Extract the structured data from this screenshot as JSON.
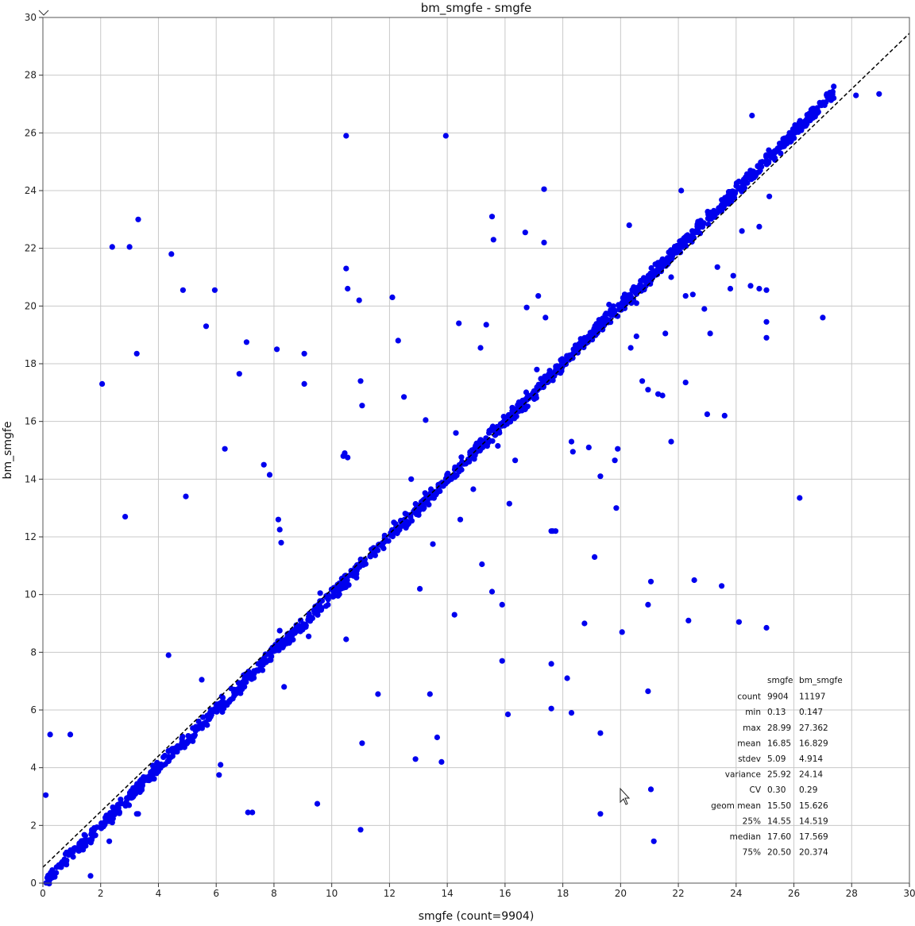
{
  "chart_data": {
    "type": "scatter",
    "title": "bm_smgfe - smgfe",
    "xlabel": "smgfe (count=9904)",
    "ylabel": "bm_smgfe",
    "xlim": [
      0,
      30
    ],
    "ylim": [
      0,
      30
    ],
    "xticks": [
      0,
      2,
      4,
      6,
      8,
      10,
      12,
      14,
      16,
      18,
      20,
      22,
      24,
      26,
      28,
      30
    ],
    "yticks": [
      0,
      2,
      4,
      6,
      8,
      10,
      12,
      14,
      16,
      18,
      20,
      22,
      24,
      26,
      28,
      30
    ],
    "grid": true,
    "point_color": "#0000ee",
    "fit_line": {
      "style": "dashed",
      "color": "#000000",
      "x": [
        0,
        30
      ],
      "y": [
        0.55,
        29.45
      ]
    },
    "series": [
      {
        "diagonal_band": {
          "x_range": [
            0.1,
            27.4
          ],
          "spread": 0.2
        },
        "points": [
          [
            0.1,
            3.05
          ],
          [
            0.25,
            5.15
          ],
          [
            0.95,
            5.15
          ],
          [
            2.05,
            17.3
          ],
          [
            2.4,
            22.05
          ],
          [
            3.0,
            22.05
          ],
          [
            3.3,
            23.0
          ],
          [
            3.25,
            18.35
          ],
          [
            2.85,
            12.7
          ],
          [
            4.45,
            21.8
          ],
          [
            4.85,
            20.55
          ],
          [
            4.95,
            13.4
          ],
          [
            5.65,
            19.3
          ],
          [
            5.95,
            20.55
          ],
          [
            6.3,
            15.05
          ],
          [
            6.8,
            17.65
          ],
          [
            7.05,
            18.75
          ],
          [
            7.65,
            14.5
          ],
          [
            7.85,
            14.15
          ],
          [
            8.1,
            18.5
          ],
          [
            8.15,
            12.6
          ],
          [
            8.2,
            12.25
          ],
          [
            8.25,
            11.8
          ],
          [
            9.05,
            18.35
          ],
          [
            9.05,
            17.3
          ],
          [
            9.5,
            2.75
          ],
          [
            10.4,
            14.8
          ],
          [
            10.55,
            14.75
          ],
          [
            10.45,
            14.9
          ],
          [
            10.5,
            21.3
          ],
          [
            11.0,
            1.85
          ],
          [
            11.05,
            4.85
          ],
          [
            10.5,
            25.9
          ],
          [
            10.55,
            20.6
          ],
          [
            10.95,
            20.2
          ],
          [
            11.0,
            17.4
          ],
          [
            11.05,
            16.55
          ],
          [
            12.1,
            20.3
          ],
          [
            12.3,
            18.8
          ],
          [
            12.5,
            16.85
          ],
          [
            12.9,
            4.3
          ],
          [
            13.4,
            6.55
          ],
          [
            13.65,
            5.05
          ],
          [
            13.8,
            4.2
          ],
          [
            13.95,
            25.9
          ],
          [
            14.25,
            9.3
          ],
          [
            14.4,
            19.4
          ],
          [
            15.55,
            23.1
          ],
          [
            15.6,
            22.3
          ],
          [
            15.2,
            11.05
          ],
          [
            15.55,
            10.1
          ],
          [
            15.9,
            9.65
          ],
          [
            15.9,
            7.7
          ],
          [
            16.1,
            5.85
          ],
          [
            16.15,
            13.15
          ],
          [
            16.7,
            22.55
          ],
          [
            17.15,
            20.35
          ],
          [
            17.35,
            24.05
          ],
          [
            17.35,
            22.2
          ],
          [
            17.6,
            12.2
          ],
          [
            17.65,
            12.2
          ],
          [
            17.75,
            12.2
          ],
          [
            17.6,
            7.6
          ],
          [
            17.6,
            6.05
          ],
          [
            18.15,
            7.1
          ],
          [
            18.3,
            5.9
          ],
          [
            18.75,
            9.0
          ],
          [
            19.1,
            11.3
          ],
          [
            19.3,
            5.2
          ],
          [
            19.3,
            2.4
          ],
          [
            19.8,
            14.65
          ],
          [
            19.85,
            13.0
          ],
          [
            20.05,
            8.7
          ],
          [
            20.3,
            22.8
          ],
          [
            20.35,
            18.55
          ],
          [
            20.75,
            17.4
          ],
          [
            20.95,
            9.65
          ],
          [
            20.95,
            6.65
          ],
          [
            21.05,
            3.25
          ],
          [
            21.05,
            10.45
          ],
          [
            21.15,
            1.45
          ],
          [
            21.45,
            16.9
          ],
          [
            21.75,
            15.3
          ],
          [
            22.1,
            24.0
          ],
          [
            22.25,
            17.35
          ],
          [
            22.35,
            9.1
          ],
          [
            22.55,
            10.5
          ],
          [
            23.0,
            16.25
          ],
          [
            23.1,
            19.05
          ],
          [
            23.5,
            10.3
          ],
          [
            23.6,
            16.2
          ],
          [
            23.8,
            20.6
          ],
          [
            24.1,
            9.05
          ],
          [
            24.55,
            26.6
          ],
          [
            24.8,
            20.6
          ],
          [
            25.05,
            20.55
          ],
          [
            25.05,
            8.85
          ],
          [
            25.05,
            19.45
          ],
          [
            25.05,
            18.9
          ],
          [
            26.2,
            13.35
          ],
          [
            27.0,
            19.6
          ],
          [
            28.15,
            27.3
          ],
          [
            28.95,
            27.35
          ],
          [
            1.65,
            0.25
          ],
          [
            2.4,
            2.1
          ],
          [
            2.3,
            1.45
          ],
          [
            3.25,
            2.4
          ],
          [
            3.3,
            2.4
          ],
          [
            4.35,
            7.9
          ],
          [
            5.5,
            7.05
          ],
          [
            6.15,
            4.1
          ],
          [
            6.1,
            3.75
          ],
          [
            7.1,
            2.45
          ],
          [
            7.25,
            2.45
          ],
          [
            8.2,
            8.75
          ],
          [
            8.35,
            6.8
          ],
          [
            9.2,
            8.55
          ],
          [
            9.6,
            10.05
          ],
          [
            10.5,
            8.45
          ],
          [
            11.6,
            6.55
          ],
          [
            12.15,
            12.5
          ],
          [
            12.75,
            14.0
          ],
          [
            13.05,
            10.2
          ],
          [
            13.25,
            16.05
          ],
          [
            13.5,
            11.75
          ],
          [
            14.3,
            15.6
          ],
          [
            14.45,
            12.6
          ],
          [
            14.9,
            13.65
          ],
          [
            15.15,
            18.55
          ],
          [
            15.35,
            19.35
          ],
          [
            15.75,
            15.15
          ],
          [
            16.35,
            14.65
          ],
          [
            16.75,
            19.95
          ],
          [
            17.1,
            17.8
          ],
          [
            17.4,
            19.6
          ],
          [
            18.3,
            15.3
          ],
          [
            18.35,
            14.95
          ],
          [
            18.9,
            15.1
          ],
          [
            19.3,
            14.1
          ],
          [
            19.6,
            20.05
          ],
          [
            19.9,
            15.05
          ],
          [
            20.55,
            18.95
          ],
          [
            20.55,
            20.1
          ],
          [
            20.95,
            17.1
          ],
          [
            21.3,
            16.95
          ],
          [
            21.55,
            19.05
          ],
          [
            21.75,
            21.0
          ],
          [
            22.25,
            20.35
          ],
          [
            22.5,
            20.4
          ],
          [
            22.9,
            19.9
          ],
          [
            23.35,
            21.35
          ],
          [
            23.9,
            21.05
          ],
          [
            24.2,
            22.6
          ],
          [
            24.5,
            20.7
          ],
          [
            24.8,
            22.75
          ],
          [
            25.15,
            23.8
          ]
        ]
      }
    ],
    "stats_table": {
      "columns": [
        "",
        "smgfe",
        "bm_smgfe"
      ],
      "rows": [
        [
          "count",
          "9904",
          "11197"
        ],
        [
          "min",
          "0.13",
          "0.147"
        ],
        [
          "max",
          "28.99",
          "27.362"
        ],
        [
          "mean",
          "16.85",
          "16.829"
        ],
        [
          "stdev",
          "5.09",
          "4.914"
        ],
        [
          "variance",
          "25.92",
          "24.14"
        ],
        [
          "CV",
          "0.30",
          "0.29"
        ],
        [
          "geom mean",
          "15.50",
          "15.626"
        ],
        [
          "25%",
          "14.55",
          "14.519"
        ],
        [
          "median",
          "17.60",
          "17.569"
        ],
        [
          "75%",
          "20.50",
          "20.374"
        ]
      ]
    }
  }
}
